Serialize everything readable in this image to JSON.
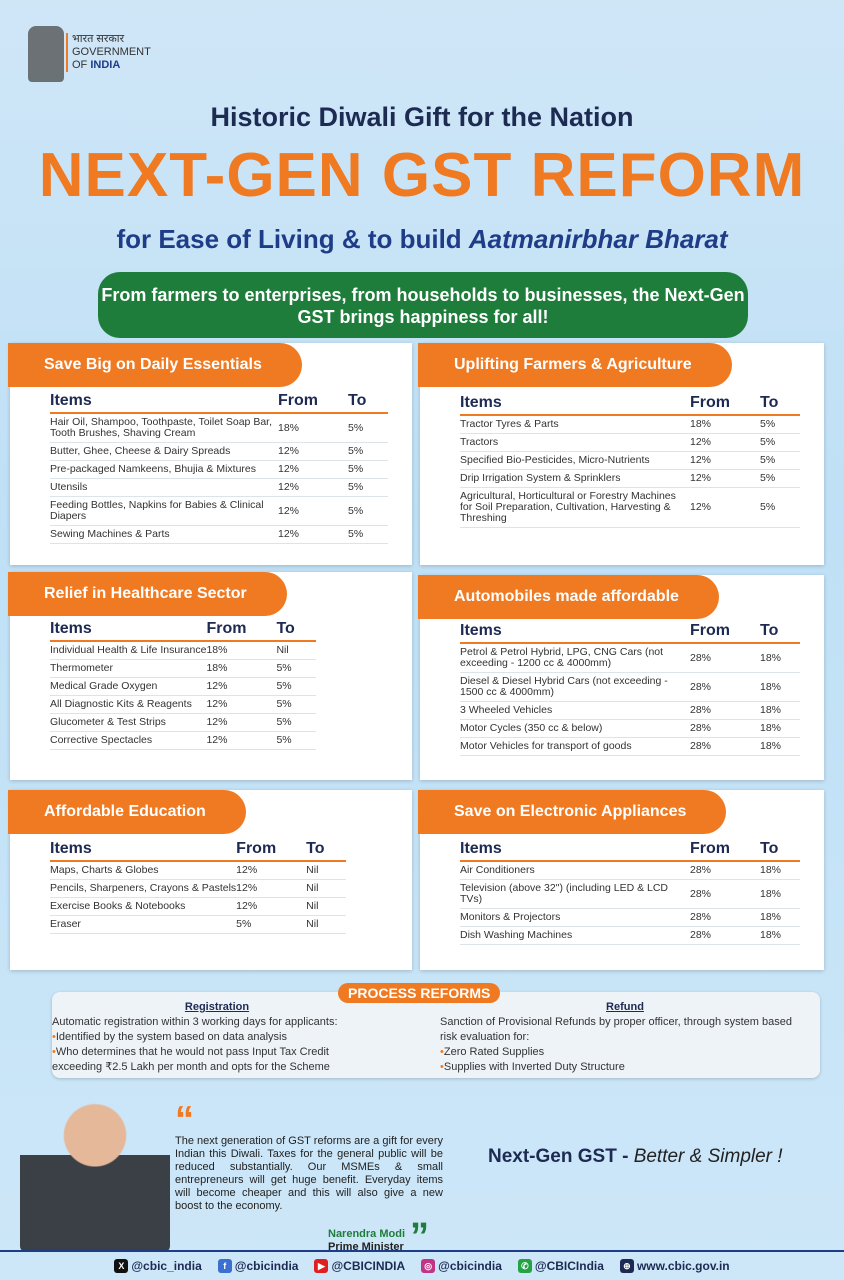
{
  "header": {
    "hindi": "भारत सरकार",
    "gov": "GOVERNMENT",
    "of": "OF ",
    "india": "INDIA"
  },
  "title": "Historic Diwali Gift for the Nation",
  "headline": "NEXT-GEN GST REFORM",
  "subtitle_a": "for Ease of Living & to build ",
  "subtitle_b": "Aatmanirbhar Bharat",
  "banner": "From farmers to enterprises, from households to businesses, the Next-Gen GST brings happiness for all!",
  "columns": {
    "items": "Items",
    "from": "From",
    "to": "To"
  },
  "panels": [
    {
      "title": "Save Big on Daily Essentials",
      "rows": [
        [
          "Hair Oil, Shampoo, Toothpaste, Toilet Soap Bar, Tooth Brushes, Shaving Cream",
          "18%",
          "5%"
        ],
        [
          "Butter, Ghee, Cheese & Dairy Spreads",
          "12%",
          "5%"
        ],
        [
          "Pre-packaged Namkeens, Bhujia & Mixtures",
          "12%",
          "5%"
        ],
        [
          "Utensils",
          "12%",
          "5%"
        ],
        [
          "Feeding Bottles, Napkins for Babies & Clinical Diapers",
          "12%",
          "5%"
        ],
        [
          "Sewing Machines & Parts",
          "12%",
          "5%"
        ]
      ]
    },
    {
      "title": "Uplifting Farmers & Agriculture",
      "rows": [
        [
          "Tractor Tyres & Parts",
          "18%",
          "5%"
        ],
        [
          "Tractors",
          "12%",
          "5%"
        ],
        [
          "Specified Bio-Pesticides, Micro-Nutrients",
          "12%",
          "5%"
        ],
        [
          "Drip Irrigation System & Sprinklers",
          "12%",
          "5%"
        ],
        [
          "Agricultural, Horticultural or Forestry Machines for Soil Preparation, Cultivation, Harvesting & Threshing",
          "12%",
          "5%"
        ]
      ]
    },
    {
      "title": "Relief in Healthcare Sector",
      "rows": [
        [
          "Individual Health & Life Insurance",
          "18%",
          "Nil"
        ],
        [
          "Thermometer",
          "18%",
          "5%"
        ],
        [
          "Medical Grade Oxygen",
          "12%",
          "5%"
        ],
        [
          "All Diagnostic Kits & Reagents",
          "12%",
          "5%"
        ],
        [
          "Glucometer & Test Strips",
          "12%",
          "5%"
        ],
        [
          "Corrective Spectacles",
          "12%",
          "5%"
        ]
      ]
    },
    {
      "title": "Automobiles made affordable",
      "rows": [
        [
          "Petrol & Petrol Hybrid, LPG, CNG Cars (not exceeding - 1200 cc & 4000mm)",
          "28%",
          "18%"
        ],
        [
          "Diesel & Diesel Hybrid Cars (not exceeding - 1500 cc & 4000mm)",
          "28%",
          "18%"
        ],
        [
          "3 Wheeled Vehicles",
          "28%",
          "18%"
        ],
        [
          "Motor Cycles (350 cc & below)",
          "28%",
          "18%"
        ],
        [
          "Motor Vehicles for transport of goods",
          "28%",
          "18%"
        ]
      ]
    },
    {
      "title": "Affordable Education",
      "rows": [
        [
          "Maps, Charts & Globes",
          "12%",
          "Nil"
        ],
        [
          "Pencils, Sharpeners, Crayons & Pastels",
          "12%",
          "Nil"
        ],
        [
          "Exercise Books & Notebooks",
          "12%",
          "Nil"
        ],
        [
          "Eraser",
          "5%",
          "Nil"
        ]
      ]
    },
    {
      "title": "Save on Electronic Appliances",
      "rows": [
        [
          "Air Conditioners",
          "28%",
          "18%"
        ],
        [
          "Television (above 32\") (including LED & LCD TVs)",
          "28%",
          "18%"
        ],
        [
          "Monitors & Projectors",
          "28%",
          "18%"
        ],
        [
          "Dish Washing Machines",
          "28%",
          "18%"
        ]
      ]
    }
  ],
  "process": {
    "label": "PROCESS REFORMS",
    "registration": {
      "title": "Registration",
      "intro": "Automatic registration within 3 working days for applicants:",
      "points": [
        "Identified by the system based on data analysis",
        "Who determines that he would not pass Input Tax Credit exceeding ₹2.5 Lakh per month and opts for the Scheme"
      ]
    },
    "refund": {
      "title": "Refund",
      "intro": "Sanction of Provisional Refunds by proper officer, through system based risk evaluation for:",
      "points": [
        "Zero Rated Supplies",
        "Supplies with Inverted Duty Structure"
      ]
    }
  },
  "quote": {
    "text": "The next generation of GST reforms are a gift for every Indian this Diwali. Taxes for the general public will be reduced substantially. Our MSMEs & small entrepreneurs will get huge benefit. Everyday items will become cheaper and this will also give a new boost to the economy.",
    "name": "Narendra Modi",
    "role": "Prime Minister"
  },
  "tagline": {
    "bold": "Next-Gen GST - ",
    "italic": "Better & Simpler !"
  },
  "social": [
    {
      "icon": "x-icon",
      "handle": "@cbic_india",
      "color": "#111111"
    },
    {
      "icon": "facebook-icon",
      "handle": "@cbicindia",
      "color": "#3b6fd0"
    },
    {
      "icon": "youtube-icon",
      "handle": "@CBICINDIA",
      "color": "#e02020"
    },
    {
      "icon": "instagram-icon",
      "handle": "@cbicindia",
      "color": "#c13584"
    },
    {
      "icon": "whatsapp-icon",
      "handle": "@CBICIndia",
      "color": "#25a244"
    },
    {
      "icon": "globe-icon",
      "handle": "www.cbic.gov.in",
      "color": "#1d2a52"
    }
  ],
  "colors": {
    "orange": "#f07a22",
    "green": "#1e7d3a",
    "navy": "#1d2a52"
  }
}
